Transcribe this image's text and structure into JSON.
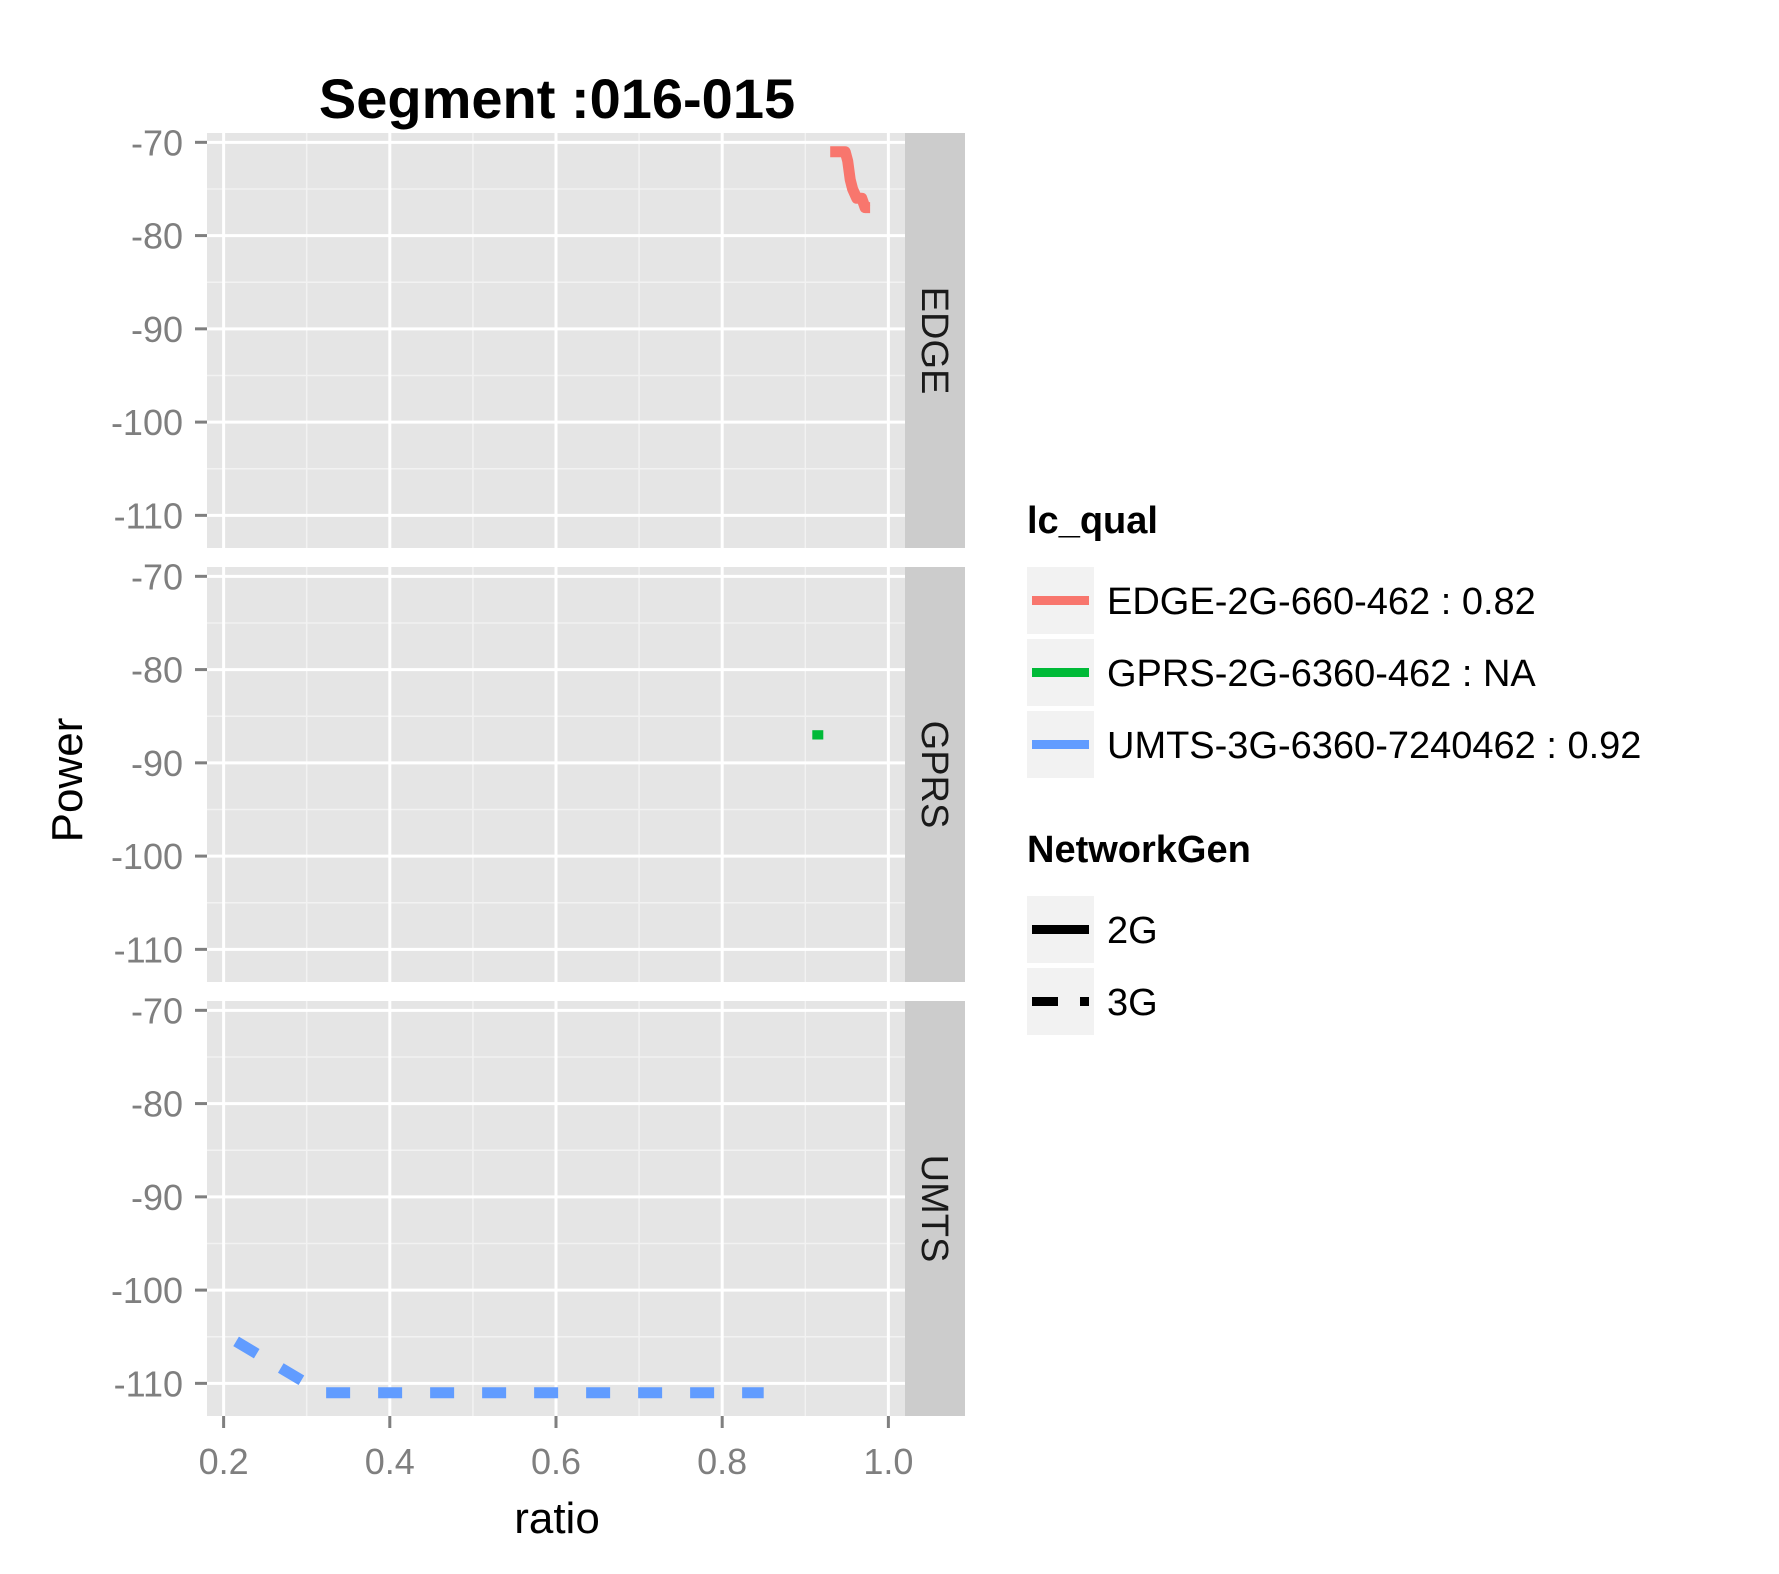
{
  "chart_data": {
    "type": "line",
    "title": "Segment :016-015",
    "xlabel": "ratio",
    "ylabel": "Power",
    "xlim": [
      0.18,
      1.02
    ],
    "ylim": [
      -113.5,
      -69
    ],
    "x_ticks": [
      "0.2",
      "0.4",
      "0.6",
      "0.8",
      "1.0"
    ],
    "x_tick_values": [
      0.2,
      0.4,
      0.6,
      0.8,
      1.0
    ],
    "y_ticks": [
      "-70",
      "-80",
      "-90",
      "-100",
      "-110"
    ],
    "y_tick_values": [
      -70,
      -80,
      -90,
      -100,
      -110
    ],
    "grid": true,
    "legend_position": "right",
    "facets": [
      {
        "label": "EDGE",
        "series": [
          {
            "name": "EDGE-2G-660-462 : 0.82",
            "color": "#F8766D",
            "linetype": "solid",
            "x": [
              0.93,
              0.948,
              0.951,
              0.954,
              0.957,
              0.962,
              0.968,
              0.972,
              0.978
            ],
            "y": [
              -71,
              -71,
              -72,
              -74,
              -75,
              -76,
              -76,
              -77,
              -77
            ]
          }
        ]
      },
      {
        "label": "GPRS",
        "series": [
          {
            "name": "GPRS-2G-6360-462 : NA",
            "color": "#00BA38",
            "linetype": "solid",
            "x": [
              0.915,
              0.915
            ],
            "y": [
              -86.5,
              -87.5
            ]
          }
        ]
      },
      {
        "label": "UMTS",
        "series": [
          {
            "name": "UMTS-3G-6360-7240462 : 0.92",
            "color": "#619CFF",
            "linetype": "dashed",
            "x": [
              0.215,
              0.3,
              0.32,
              0.85
            ],
            "y": [
              -105.5,
              -110,
              -111,
              -111
            ]
          }
        ]
      }
    ],
    "legends": [
      {
        "title": "lc_qual",
        "entries": [
          {
            "label": "EDGE-2G-660-462 : 0.82",
            "color": "#F8766D",
            "linetype": "solid"
          },
          {
            "label": "GPRS-2G-6360-462 : NA",
            "color": "#00BA38",
            "linetype": "solid"
          },
          {
            "label": "UMTS-3G-6360-7240462 : 0.92",
            "color": "#619CFF",
            "linetype": "solid"
          }
        ]
      },
      {
        "title": "NetworkGen",
        "entries": [
          {
            "label": "2G",
            "color": "#000000",
            "linetype": "solid"
          },
          {
            "label": "3G",
            "color": "#000000",
            "linetype": "dashed"
          }
        ]
      }
    ]
  }
}
